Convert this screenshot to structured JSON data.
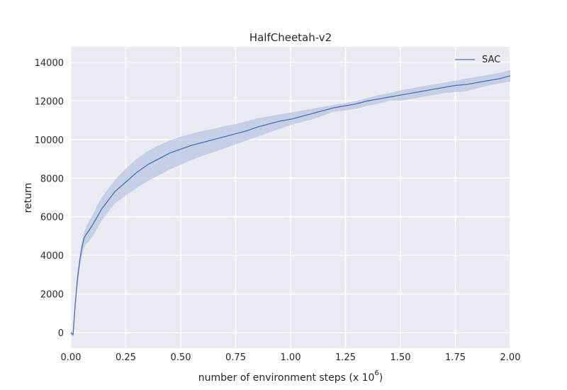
{
  "chart_data": {
    "type": "line",
    "title": "HalfCheetah-v2",
    "xlabel_main": "number of environment steps (x 10",
    "xlabel_exp": "6",
    "xlabel_end": ")",
    "ylabel": "return",
    "xlim": [
      0,
      2.0
    ],
    "ylim": [
      -800,
      14800
    ],
    "xticks": [
      "0.00",
      "0.25",
      "0.50",
      "0.75",
      "1.00",
      "1.25",
      "1.50",
      "1.75",
      "2.00"
    ],
    "yticks": [
      "0",
      "2000",
      "4000",
      "6000",
      "8000",
      "10000",
      "12000",
      "14000"
    ],
    "grid": true,
    "legend_position": "top-right",
    "colors": {
      "line": "#4c72b0",
      "band": "#b9c6e1",
      "background": "#eaeaf2",
      "grid": "#ffffff"
    },
    "series": [
      {
        "name": "SAC",
        "x": [
          0,
          0.01,
          0.02,
          0.03,
          0.04,
          0.05,
          0.06,
          0.07,
          0.08,
          0.1,
          0.12,
          0.14,
          0.16,
          0.18,
          0.2,
          0.25,
          0.3,
          0.35,
          0.4,
          0.45,
          0.5,
          0.55,
          0.6,
          0.65,
          0.7,
          0.75,
          0.8,
          0.85,
          0.9,
          0.95,
          1.0,
          1.05,
          1.1,
          1.15,
          1.2,
          1.25,
          1.3,
          1.35,
          1.4,
          1.45,
          1.5,
          1.55,
          1.6,
          1.65,
          1.7,
          1.75,
          1.8,
          1.85,
          1.9,
          1.95,
          2.0
        ],
        "y": [
          0,
          -100,
          1500,
          2800,
          3700,
          4400,
          4900,
          5100,
          5250,
          5600,
          6000,
          6400,
          6700,
          7000,
          7300,
          7800,
          8300,
          8700,
          9000,
          9300,
          9500,
          9700,
          9850,
          10000,
          10150,
          10300,
          10450,
          10650,
          10800,
          10950,
          11050,
          11200,
          11350,
          11500,
          11650,
          11750,
          11850,
          12000,
          12100,
          12200,
          12300,
          12400,
          12500,
          12600,
          12700,
          12800,
          12850,
          12950,
          13050,
          13150,
          13300
        ],
        "y_lower": [
          -100,
          -200,
          1200,
          2400,
          3300,
          4000,
          4400,
          4600,
          4700,
          5000,
          5400,
          5800,
          6100,
          6400,
          6700,
          7100,
          7500,
          7850,
          8150,
          8450,
          8700,
          8950,
          9150,
          9350,
          9550,
          9750,
          9950,
          10150,
          10350,
          10550,
          10750,
          10900,
          11050,
          11250,
          11450,
          11500,
          11600,
          11750,
          11850,
          12000,
          12000,
          12100,
          12200,
          12300,
          12400,
          12450,
          12500,
          12650,
          12800,
          12900,
          13000
        ],
        "y_upper": [
          100,
          0,
          1800,
          3100,
          4000,
          4700,
          5200,
          5500,
          5700,
          6100,
          6600,
          7000,
          7300,
          7600,
          7900,
          8500,
          9000,
          9400,
          9700,
          9950,
          10150,
          10300,
          10450,
          10550,
          10700,
          10800,
          10950,
          11100,
          11200,
          11300,
          11400,
          11500,
          11600,
          11700,
          11800,
          11900,
          12000,
          12150,
          12300,
          12400,
          12550,
          12650,
          12750,
          12850,
          12950,
          13050,
          13150,
          13250,
          13350,
          13450,
          13600
        ]
      }
    ]
  }
}
